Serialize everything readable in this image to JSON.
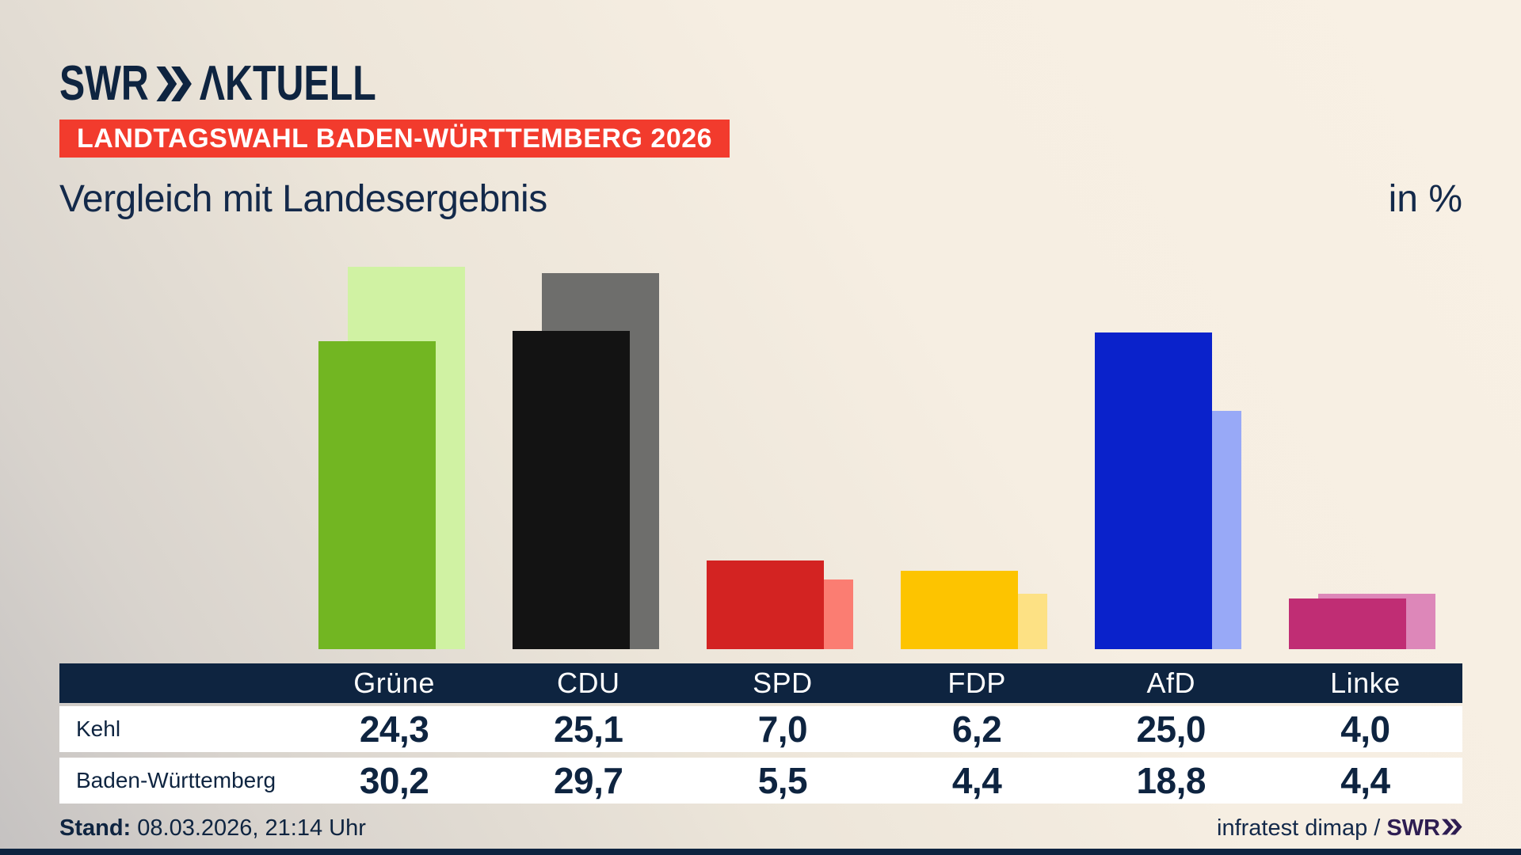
{
  "brand": {
    "logo_text": "SWR",
    "logo_suffix": "ΛKTUELL"
  },
  "badge": {
    "label": "LANDTAGSWAHL BADEN-WÜRTTEMBERG 2026"
  },
  "title": "Vergleich mit Landesergebnis",
  "unit_label": "in %",
  "colors": {
    "navy": "#0e2440",
    "badge_red": "#f23b2d",
    "table_header_bg": "#0e2440",
    "footer_brand_purple": "#2e1d52",
    "background_cream": "#f8f0e4",
    "background_gray": "#c5c2c1"
  },
  "chart_data": {
    "type": "bar",
    "title": "Vergleich mit Landesergebnis",
    "ylabel": "in %",
    "ylim": [
      0,
      32
    ],
    "grid": false,
    "legend_position": "table-below",
    "categories": [
      "Grüne",
      "CDU",
      "SPD",
      "FDP",
      "AfD",
      "Linke"
    ],
    "series": [
      {
        "name": "Kehl",
        "role": "foreground",
        "values": [
          24.3,
          25.1,
          7.0,
          6.2,
          25.0,
          4.0
        ]
      },
      {
        "name": "Baden-Württemberg",
        "role": "background-offset",
        "values": [
          30.2,
          29.7,
          5.5,
          4.4,
          18.8,
          4.4
        ]
      }
    ],
    "party_colors": [
      {
        "name": "Grüne",
        "front": "#72b622",
        "back": "#d0f2a3"
      },
      {
        "name": "CDU",
        "front": "#131313",
        "back": "#6e6e6c"
      },
      {
        "name": "SPD",
        "front": "#d32322",
        "back": "#fb7d72"
      },
      {
        "name": "FDP",
        "front": "#fdc400",
        "back": "#fde184"
      },
      {
        "name": "AfD",
        "front": "#0a22cb",
        "back": "#98a9f7"
      },
      {
        "name": "Linke",
        "front": "#c02d74",
        "back": "#dd87b9"
      }
    ]
  },
  "table": {
    "header": [
      "Grüne",
      "CDU",
      "SPD",
      "FDP",
      "AfD",
      "Linke"
    ],
    "rows": [
      {
        "label": "Kehl",
        "values": [
          "24,3",
          "25,1",
          "7,0",
          "6,2",
          "25,0",
          "4,0"
        ]
      },
      {
        "label": "Baden-Württemberg",
        "values": [
          "30,2",
          "29,7",
          "5,5",
          "4,4",
          "18,8",
          "4,4"
        ]
      }
    ]
  },
  "footer": {
    "stand_label": "Stand:",
    "stand_value": " 08.03.2026, 21:14 Uhr",
    "source_text": "infratest dimap /",
    "source_brand": "SWR"
  }
}
